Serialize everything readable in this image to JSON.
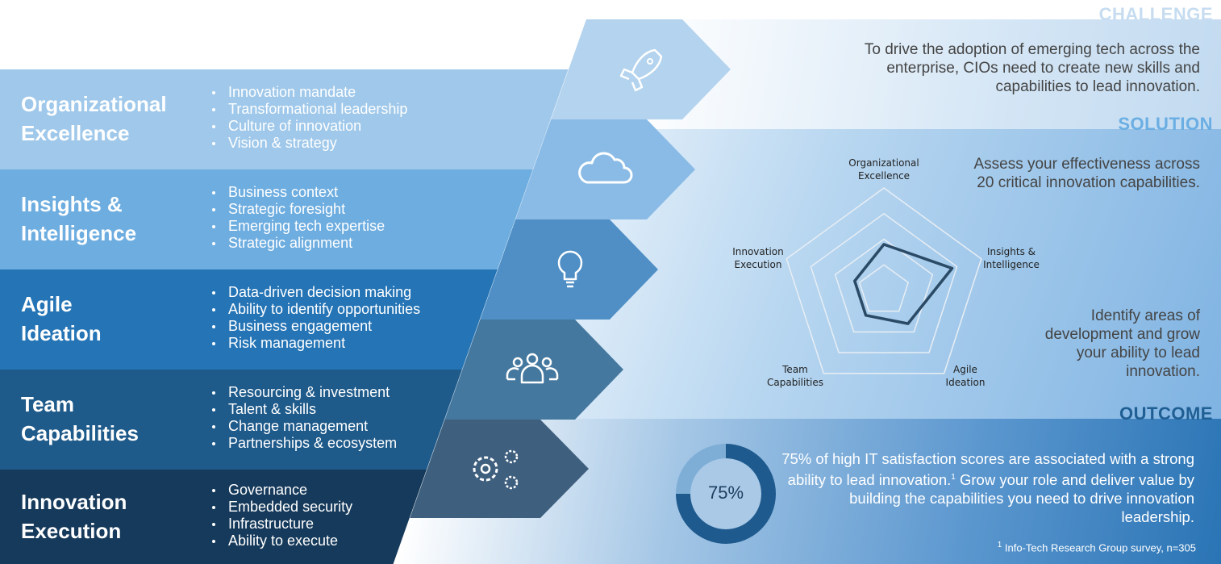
{
  "sections": {
    "challenge": {
      "heading": "CHALLENGE",
      "text": "To drive the adoption of emerging tech across the enterprise, CIOs need to create new skills and capabilities to lead innovation."
    },
    "solution": {
      "heading": "SOLUTION",
      "text1": "Assess your effectiveness across 20 critical innovation capabilities.",
      "text2": "Identify areas of development and grow your ability to lead innovation."
    },
    "outcome": {
      "heading": "OUTCOME",
      "text_a": "75% of high IT satisfaction scores are associated with a strong ability to lead innovation.",
      "sup": "1",
      "text_b": " Grow your role and deliver value by building the capabilities you need to drive innovation leadership.",
      "footnote_mark": "1",
      "footnote": " Info-Tech Research Group survey, n=305"
    }
  },
  "bands": [
    {
      "title_1": "Organizational",
      "title_2": "Excellence",
      "color": "#9fc8ea",
      "arrow_color": "#b3d3ee",
      "icon": "rocket-icon",
      "items": [
        "Innovation mandate",
        "Transformational leadership",
        "Culture of innovation",
        "Vision & strategy"
      ]
    },
    {
      "title_1": "Insights &",
      "title_2": "Intelligence",
      "color": "#6eade0",
      "arrow_color": "#89bbe6",
      "icon": "cloud-icon",
      "items": [
        "Business context",
        "Strategic foresight",
        "Emerging tech expertise",
        "Strategic alignment"
      ]
    },
    {
      "title_1": "Agile",
      "title_2": "Ideation",
      "color": "#2574b5",
      "arrow_color": "#4f8fc6",
      "icon": "lightbulb-icon",
      "items": [
        "Data-driven decision making",
        "Ability to identify opportunities",
        "Business engagement",
        "Risk management"
      ]
    },
    {
      "title_1": "Team",
      "title_2": "Capabilities",
      "color": "#1e5a8a",
      "arrow_color": "#45789f",
      "icon": "team-icon",
      "items": [
        "Resourcing & investment",
        "Talent & skills",
        "Change management",
        "Partnerships & ecosystem"
      ]
    },
    {
      "title_1": "Innovation",
      "title_2": "Execution",
      "color": "#163a5b",
      "arrow_color": "#3e5f7e",
      "icon": "gears-icon",
      "items": [
        "Governance",
        "Embedded security",
        "Infrastructure",
        "Ability to execute"
      ]
    }
  ],
  "chart_data": [
    {
      "type": "radar",
      "axes": [
        "Organizational Excellence",
        "Insights & Intelligence",
        "Agile Ideation",
        "Team Capabilities",
        "Innovation Execution"
      ],
      "axis_labels": [
        [
          "Organizational",
          "Excellence"
        ],
        [
          "Insights &",
          "Intelligence"
        ],
        [
          "Agile",
          "Ideation"
        ],
        [
          "Team",
          "Capabilities"
        ],
        [
          "Innovation",
          "Execution"
        ]
      ],
      "rings": 4,
      "range": [
        0,
        4
      ],
      "values": [
        1.8,
        2.8,
        1.6,
        1.2,
        1.2
      ],
      "line_color": "#2a4a66",
      "grid_color": "#e8eef4"
    },
    {
      "type": "pie",
      "variant": "donut",
      "values": [
        75,
        25
      ],
      "colors": [
        "#1f5a8e",
        "#7eaed6"
      ],
      "label": "75%"
    }
  ]
}
